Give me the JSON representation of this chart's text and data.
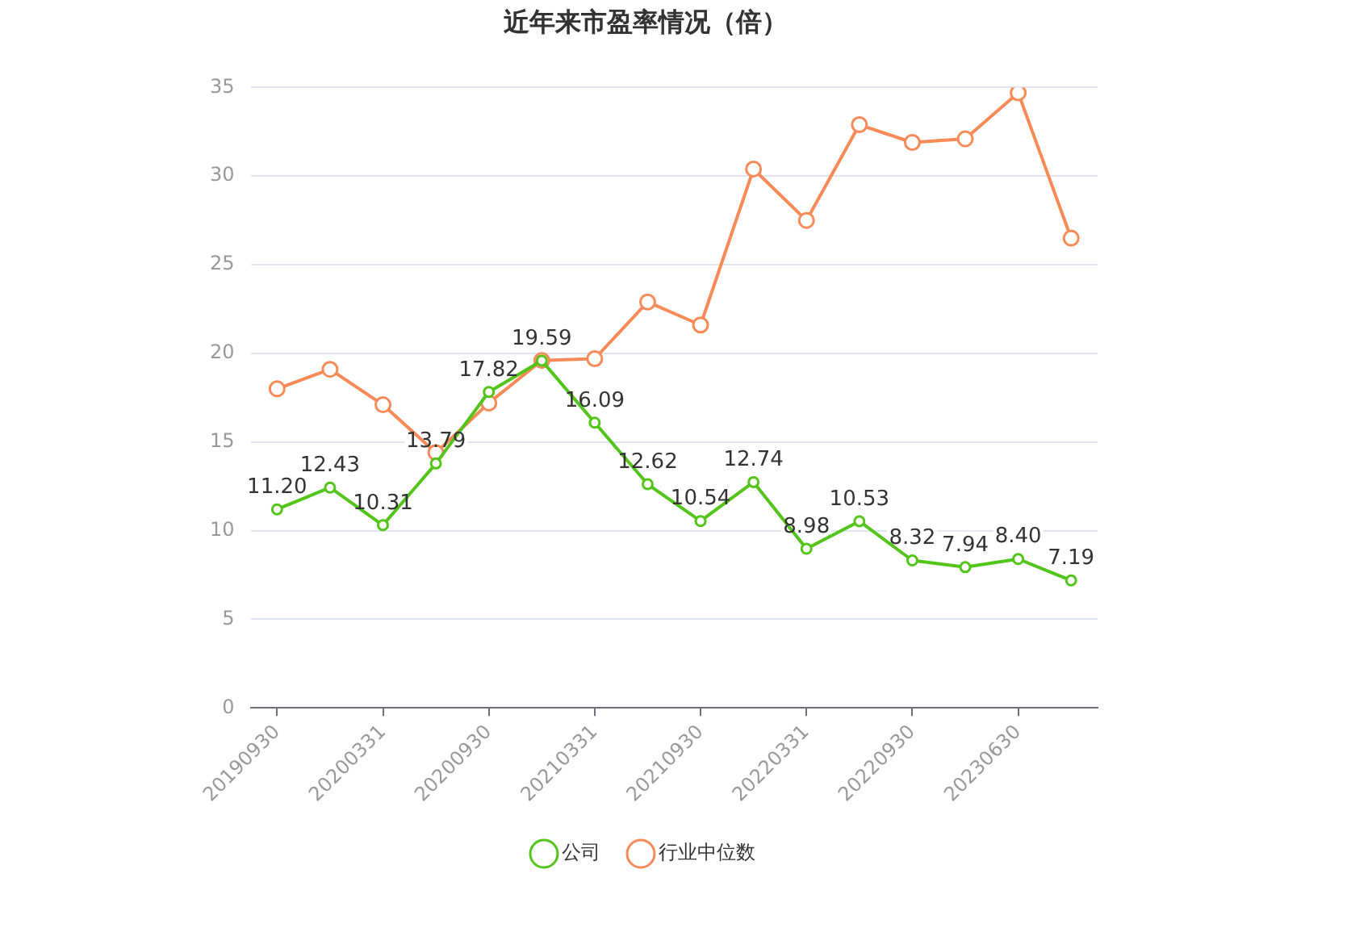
{
  "chart_data": {
    "type": "line",
    "title": "近年来市盈率情况（倍）",
    "categories": [
      "20190930",
      null,
      "20200331",
      null,
      "20200930",
      null,
      "20210331",
      null,
      "20210930",
      null,
      "20220331",
      null,
      "20220930",
      null,
      "20230630",
      null
    ],
    "series": [
      {
        "name": "公司",
        "color": "#52c41a",
        "values": [
          11.2,
          12.43,
          10.31,
          13.79,
          17.82,
          19.59,
          16.09,
          12.62,
          10.54,
          12.74,
          8.98,
          10.53,
          8.32,
          7.94,
          8.4,
          7.19
        ],
        "value_labels": [
          "11.20",
          "12.43",
          "10.31",
          "13.79",
          "17.82",
          "19.59",
          "16.09",
          "12.62",
          "10.54",
          "12.74",
          "8.98",
          "10.53",
          "8.32",
          "7.94",
          "8.40",
          "7.19"
        ]
      },
      {
        "name": "行业中位数",
        "color": "#f88a58",
        "values": [
          18.0,
          19.1,
          17.1,
          14.4,
          17.2,
          19.6,
          19.7,
          22.9,
          21.6,
          30.4,
          27.5,
          32.9,
          31.9,
          32.1,
          34.7,
          26.5
        ]
      }
    ],
    "ylim": [
      0,
      35
    ],
    "yticks": [
      0,
      5,
      10,
      15,
      20,
      25,
      30,
      35
    ],
    "grid": "y",
    "legend": "bottom",
    "marker": "circle",
    "line_style": "solid"
  }
}
